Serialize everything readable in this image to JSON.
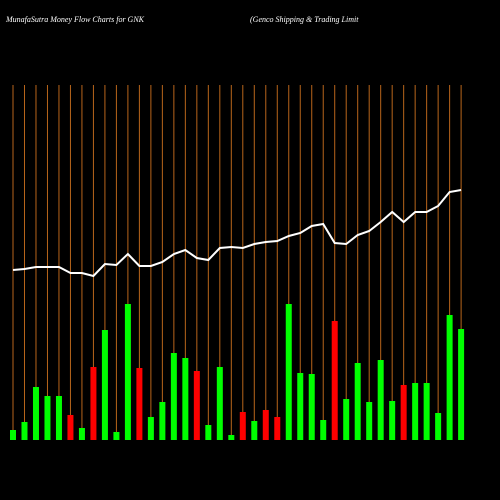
{
  "chart_data": {
    "type": "bar-line",
    "title": "MunafaSutra  Money Flow  Charts for GNK",
    "subtitle": "(Genco  Shipping & Trading Limit",
    "bars": {
      "values": [
        10,
        18,
        53,
        44,
        44,
        25,
        12,
        73,
        110,
        8,
        136,
        72,
        23,
        38,
        87,
        82,
        69,
        15,
        73,
        5,
        28,
        19,
        30,
        23,
        136,
        67,
        66,
        20,
        119,
        41,
        77,
        38,
        80,
        39,
        55,
        57,
        57,
        27,
        125,
        111
      ],
      "colors": [
        "#00ff00",
        "#00ff00",
        "#00ff00",
        "#00ff00",
        "#00ff00",
        "#ff0000",
        "#00ff00",
        "#ff0000",
        "#00ff00",
        "#00ff00",
        "#00ff00",
        "#ff0000",
        "#00ff00",
        "#00ff00",
        "#00ff00",
        "#00ff00",
        "#ff0000",
        "#00ff00",
        "#00ff00",
        "#00ff00",
        "#ff0000",
        "#00ff00",
        "#ff0000",
        "#ff0000",
        "#00ff00",
        "#00ff00",
        "#00ff00",
        "#00ff00",
        "#ff0000",
        "#00ff00",
        "#00ff00",
        "#00ff00",
        "#00ff00",
        "#00ff00",
        "#ff0000",
        "#00ff00",
        "#00ff00",
        "#00ff00",
        "#00ff00",
        "#00ff00"
      ]
    },
    "line": {
      "values": [
        170,
        171,
        173,
        173,
        173,
        167,
        167,
        164,
        176,
        175,
        186,
        174,
        174,
        178,
        186,
        190,
        182,
        180,
        192,
        193,
        192,
        196,
        198,
        199,
        204,
        207,
        214,
        216,
        197,
        196,
        205,
        209,
        218,
        228,
        218,
        228,
        228,
        234,
        248,
        250
      ],
      "color": "#ffffff"
    },
    "gridline_color": "#b8651b",
    "ylim": [
      0,
      355
    ]
  }
}
